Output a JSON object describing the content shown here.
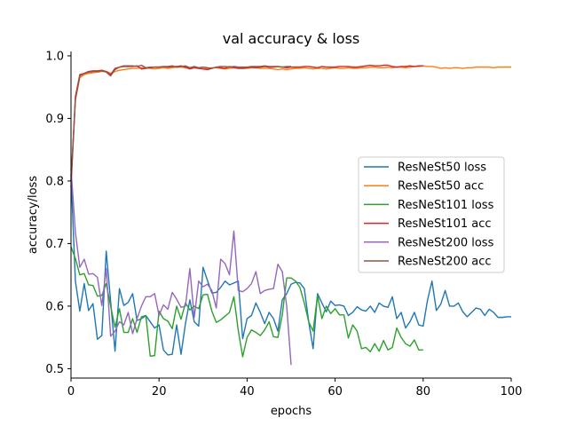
{
  "chart_data": {
    "type": "line",
    "title": "val accuracy & loss",
    "xlabel": "epochs",
    "ylabel": "accuracy/loss",
    "xlim": [
      0,
      100
    ],
    "ylim": [
      0.485,
      1.007
    ],
    "xticks": [
      0,
      20,
      40,
      60,
      80,
      100
    ],
    "yticks": [
      0.5,
      0.6,
      0.7,
      0.8,
      0.9,
      1.0
    ],
    "xtick_labels": [
      "0",
      "20",
      "40",
      "60",
      "80",
      "100"
    ],
    "ytick_labels": [
      "0.5",
      "0.6",
      "0.7",
      "0.8",
      "0.9",
      "1.0"
    ],
    "grid": false,
    "legend_position": "center-right",
    "series": [
      {
        "name": "ResNeSt50 loss",
        "color": "#1f77b4",
        "x": [
          0,
          1,
          2,
          3,
          4,
          5,
          6,
          7,
          8,
          9,
          10,
          11,
          12,
          13,
          14,
          15,
          16,
          17,
          18,
          19,
          20,
          21,
          22,
          23,
          24,
          25,
          26,
          27,
          28,
          29,
          30,
          31,
          32,
          33,
          34,
          35,
          36,
          37,
          38,
          39,
          40,
          41,
          42,
          43,
          44,
          45,
          46,
          47,
          48,
          49,
          50,
          51,
          52,
          53,
          54,
          55,
          56,
          57,
          58,
          59,
          60,
          61,
          62,
          63,
          64,
          65,
          66,
          67,
          68,
          69,
          70,
          71,
          72,
          73,
          74,
          75,
          76,
          77,
          78,
          79,
          80,
          81,
          82,
          83,
          84,
          85,
          86,
          87,
          88,
          89,
          90,
          91,
          92,
          93,
          94,
          95,
          96,
          97,
          98,
          99,
          100
        ],
        "values": [
          0.81,
          0.64,
          0.592,
          0.636,
          0.593,
          0.604,
          0.547,
          0.553,
          0.688,
          0.608,
          0.528,
          0.628,
          0.601,
          0.606,
          0.62,
          0.577,
          0.58,
          0.585,
          0.575,
          0.565,
          0.57,
          0.53,
          0.522,
          0.523,
          0.57,
          0.523,
          0.572,
          0.61,
          0.575,
          0.568,
          0.662,
          0.641,
          0.621,
          0.622,
          0.63,
          0.64,
          0.634,
          0.637,
          0.64,
          0.548,
          0.58,
          0.585,
          0.605,
          0.59,
          0.572,
          0.59,
          0.58,
          0.56,
          0.61,
          0.62,
          0.635,
          0.638,
          0.637,
          0.628,
          0.575,
          0.532,
          0.62,
          0.605,
          0.591,
          0.608,
          0.601,
          0.602,
          0.6,
          0.585,
          0.59,
          0.599,
          0.594,
          0.592,
          0.6,
          0.59,
          0.605,
          0.6,
          0.598,
          0.615,
          0.58,
          0.59,
          0.565,
          0.575,
          0.59,
          0.57,
          0.568,
          0.61,
          0.64,
          0.593,
          0.603,
          0.625,
          0.6,
          0.6,
          0.605,
          0.591,
          0.583,
          0.59,
          0.597,
          0.595,
          0.585,
          0.595,
          0.59,
          0.582,
          0.582,
          0.583,
          0.583
        ]
      },
      {
        "name": "ResNeSt50 acc",
        "color": "#ff7f0e",
        "x": [
          0,
          1,
          2,
          3,
          4,
          5,
          6,
          7,
          8,
          9,
          10,
          11,
          12,
          13,
          14,
          15,
          16,
          17,
          18,
          19,
          20,
          21,
          22,
          23,
          24,
          25,
          26,
          27,
          28,
          29,
          30,
          31,
          32,
          33,
          34,
          35,
          36,
          37,
          38,
          39,
          40,
          41,
          42,
          43,
          44,
          45,
          46,
          47,
          48,
          49,
          50,
          51,
          52,
          53,
          54,
          55,
          56,
          57,
          58,
          59,
          60,
          61,
          62,
          63,
          64,
          65,
          66,
          67,
          68,
          69,
          70,
          71,
          72,
          73,
          74,
          75,
          76,
          77,
          78,
          79,
          80,
          81,
          82,
          83,
          84,
          85,
          86,
          87,
          88,
          89,
          90,
          91,
          92,
          93,
          94,
          95,
          96,
          97,
          98,
          99,
          100
        ],
        "values": [
          0.8,
          0.93,
          0.965,
          0.97,
          0.972,
          0.973,
          0.974,
          0.975,
          0.975,
          0.972,
          0.975,
          0.977,
          0.978,
          0.979,
          0.98,
          0.98,
          0.981,
          0.981,
          0.98,
          0.979,
          0.98,
          0.981,
          0.98,
          0.981,
          0.982,
          0.982,
          0.981,
          0.98,
          0.981,
          0.98,
          0.979,
          0.98,
          0.981,
          0.981,
          0.98,
          0.979,
          0.98,
          0.981,
          0.981,
          0.98,
          0.98,
          0.981,
          0.981,
          0.98,
          0.98,
          0.98,
          0.979,
          0.978,
          0.979,
          0.978,
          0.979,
          0.98,
          0.98,
          0.981,
          0.98,
          0.979,
          0.98,
          0.98,
          0.979,
          0.98,
          0.981,
          0.98,
          0.98,
          0.981,
          0.98,
          0.98,
          0.981,
          0.981,
          0.982,
          0.982,
          0.981,
          0.981,
          0.982,
          0.981,
          0.982,
          0.982,
          0.981,
          0.982,
          0.983,
          0.983,
          0.984,
          0.983,
          0.983,
          0.982,
          0.98,
          0.981,
          0.98,
          0.981,
          0.981,
          0.98,
          0.981,
          0.981,
          0.982,
          0.982,
          0.982,
          0.982,
          0.981,
          0.982,
          0.982,
          0.982,
          0.982
        ]
      },
      {
        "name": "ResNeSt101 loss",
        "color": "#2ca02c",
        "x": [
          0,
          1,
          2,
          3,
          4,
          5,
          6,
          7,
          8,
          9,
          10,
          11,
          12,
          13,
          14,
          15,
          16,
          17,
          18,
          19,
          20,
          21,
          22,
          23,
          24,
          25,
          26,
          27,
          28,
          29,
          30,
          31,
          32,
          33,
          34,
          35,
          36,
          37,
          38,
          39,
          40,
          41,
          42,
          43,
          44,
          45,
          46,
          47,
          48,
          49,
          50,
          51,
          52,
          53,
          54,
          55,
          56,
          57,
          58,
          59,
          60,
          61,
          62,
          63,
          64,
          65,
          66,
          67,
          68,
          69,
          70,
          71,
          72,
          73,
          74,
          75,
          76,
          77,
          78,
          79,
          80
        ],
        "values": [
          0.695,
          0.676,
          0.65,
          0.652,
          0.634,
          0.633,
          0.616,
          0.617,
          0.636,
          0.6,
          0.566,
          0.596,
          0.558,
          0.558,
          0.58,
          0.558,
          0.583,
          0.585,
          0.52,
          0.521,
          0.592,
          0.58,
          0.576,
          0.564,
          0.6,
          0.579,
          0.605,
          0.594,
          0.6,
          0.596,
          0.618,
          0.619,
          0.592,
          0.574,
          0.578,
          0.584,
          0.59,
          0.615,
          0.561,
          0.519,
          0.55,
          0.562,
          0.558,
          0.553,
          0.562,
          0.575,
          0.551,
          0.55,
          0.586,
          0.645,
          0.645,
          0.64,
          0.63,
          0.605,
          0.575,
          0.56,
          0.617,
          0.58,
          0.6,
          0.588,
          0.596,
          0.586,
          0.586,
          0.549,
          0.57,
          0.56,
          0.532,
          0.534,
          0.527,
          0.54,
          0.528,
          0.545,
          0.53,
          0.534,
          0.565,
          0.55,
          0.54,
          0.536,
          0.546,
          0.53,
          0.53
        ]
      },
      {
        "name": "ResNeSt101 acc",
        "color": "#d62728",
        "x": [
          0,
          1,
          2,
          3,
          4,
          5,
          6,
          7,
          8,
          9,
          10,
          11,
          12,
          13,
          14,
          15,
          16,
          17,
          18,
          19,
          20,
          21,
          22,
          23,
          24,
          25,
          26,
          27,
          28,
          29,
          30,
          31,
          32,
          33,
          34,
          35,
          36,
          37,
          38,
          39,
          40,
          41,
          42,
          43,
          44,
          45,
          46,
          47,
          48,
          49,
          50,
          51,
          52,
          53,
          54,
          55,
          56,
          57,
          58,
          59,
          60,
          61,
          62,
          63,
          64,
          65,
          66,
          67,
          68,
          69,
          70,
          71,
          72,
          73,
          74,
          75,
          76,
          77,
          78,
          79,
          80
        ],
        "values": [
          0.79,
          0.935,
          0.97,
          0.972,
          0.975,
          0.976,
          0.976,
          0.977,
          0.975,
          0.97,
          0.98,
          0.982,
          0.983,
          0.983,
          0.983,
          0.984,
          0.979,
          0.98,
          0.981,
          0.982,
          0.982,
          0.983,
          0.982,
          0.983,
          0.983,
          0.984,
          0.982,
          0.979,
          0.981,
          0.98,
          0.979,
          0.978,
          0.98,
          0.982,
          0.981,
          0.98,
          0.983,
          0.981,
          0.98,
          0.98,
          0.981,
          0.982,
          0.981,
          0.982,
          0.983,
          0.982,
          0.982,
          0.983,
          0.982,
          0.981,
          0.982,
          0.982,
          0.982,
          0.983,
          0.983,
          0.982,
          0.981,
          0.983,
          0.982,
          0.982,
          0.982,
          0.983,
          0.983,
          0.983,
          0.982,
          0.982,
          0.983,
          0.984,
          0.985,
          0.984,
          0.984,
          0.985,
          0.985,
          0.983,
          0.982,
          0.983,
          0.983,
          0.984,
          0.983,
          0.984,
          0.984
        ]
      },
      {
        "name": "ResNeSt200 loss",
        "color": "#9467bd",
        "x": [
          0,
          1,
          2,
          3,
          4,
          5,
          6,
          7,
          8,
          9,
          10,
          11,
          12,
          13,
          14,
          15,
          16,
          17,
          18,
          19,
          20,
          21,
          22,
          23,
          24,
          25,
          26,
          27,
          28,
          29,
          30,
          31,
          32,
          33,
          34,
          35,
          36,
          37,
          38,
          39,
          40,
          41,
          42,
          43,
          44,
          45,
          46,
          47,
          48,
          49,
          50
        ],
        "values": [
          0.82,
          0.718,
          0.662,
          0.675,
          0.651,
          0.652,
          0.646,
          0.601,
          0.66,
          0.552,
          0.56,
          0.575,
          0.57,
          0.59,
          0.556,
          0.58,
          0.6,
          0.615,
          0.615,
          0.62,
          0.585,
          0.602,
          0.595,
          0.622,
          0.611,
          0.598,
          0.6,
          0.66,
          0.582,
          0.64,
          0.631,
          0.635,
          0.625,
          0.597,
          0.675,
          0.668,
          0.65,
          0.72,
          0.625,
          0.623,
          0.628,
          0.636,
          0.655,
          0.62,
          0.625,
          0.627,
          0.628,
          0.667,
          0.655,
          0.6,
          0.506
        ]
      },
      {
        "name": "ResNeSt200 acc",
        "color": "#8c564b",
        "x": [
          0,
          1,
          2,
          3,
          4,
          5,
          6,
          7,
          8,
          9,
          10,
          11,
          12,
          13,
          14,
          15,
          16,
          17,
          18,
          19,
          20,
          21,
          22,
          23,
          24,
          25,
          26,
          27,
          28,
          29,
          30,
          31,
          32,
          33,
          34,
          35,
          36,
          37,
          38,
          39,
          40,
          41,
          42,
          43,
          44,
          45,
          46,
          47,
          48,
          49,
          50
        ],
        "values": [
          0.8,
          0.93,
          0.968,
          0.972,
          0.974,
          0.975,
          0.975,
          0.976,
          0.974,
          0.968,
          0.978,
          0.982,
          0.984,
          0.984,
          0.984,
          0.983,
          0.985,
          0.981,
          0.982,
          0.982,
          0.982,
          0.983,
          0.983,
          0.984,
          0.982,
          0.983,
          0.984,
          0.981,
          0.983,
          0.981,
          0.982,
          0.981,
          0.98,
          0.982,
          0.983,
          0.983,
          0.982,
          0.983,
          0.982,
          0.982,
          0.982,
          0.983,
          0.983,
          0.983,
          0.984,
          0.983,
          0.983,
          0.983,
          0.982,
          0.983,
          0.983
        ]
      }
    ]
  }
}
